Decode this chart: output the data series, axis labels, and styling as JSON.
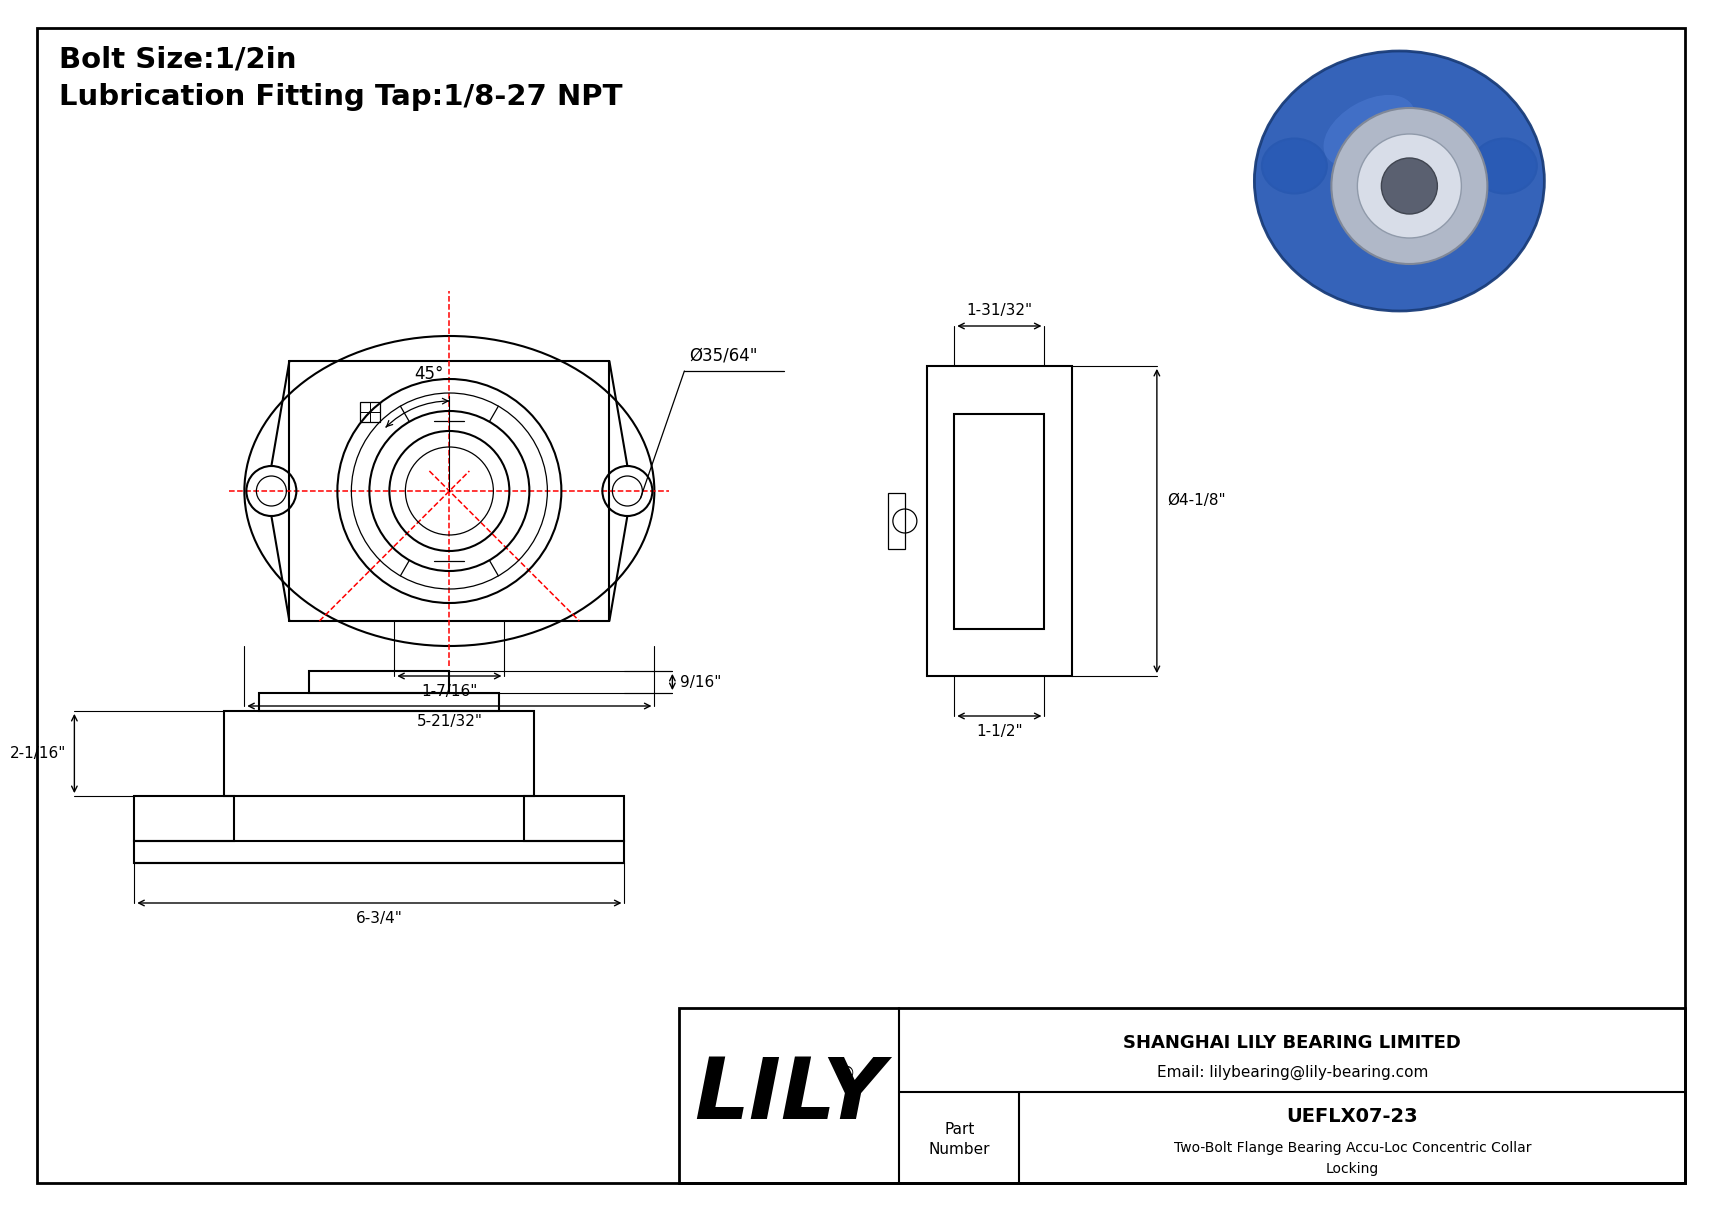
{
  "bg_color": "#ffffff",
  "line_color": "#000000",
  "red_color": "#ff0000",
  "title_line1": "Bolt Size:1/2in",
  "title_line2": "Lubrication Fitting Tap:1/8-27 NPT",
  "dim_35_64": "Ø35/64\"",
  "dim_45deg": "45°",
  "dim_1_7_16": "1-7/16\"",
  "dim_5_21_32": "5-21/32\"",
  "dim_1_31_32": "1-31/32\"",
  "dim_4_1_8": "Ø4-1/8\"",
  "dim_1_1_2": "1-1/2\"",
  "dim_2_1_16": "2-1/16\"",
  "dim_9_16": "9/16\"",
  "dim_6_3_4": "6-3/4\"",
  "part_number": "UEFLX07-23",
  "part_desc1": "Two-Bolt Flange Bearing Accu-Loc Concentric Collar",
  "part_desc2": "Locking",
  "company": "SHANGHAI LILY BEARING LIMITED",
  "email": "Email: lilybearing@lily-bearing.com",
  "lily_text": "LILY",
  "reg_symbol": "®",
  "photo_blue": "#2a5bb5",
  "photo_blue_dark": "#1a3d7a",
  "photo_silver": "#b0b8c8",
  "photo_inner": "#d8dde8"
}
